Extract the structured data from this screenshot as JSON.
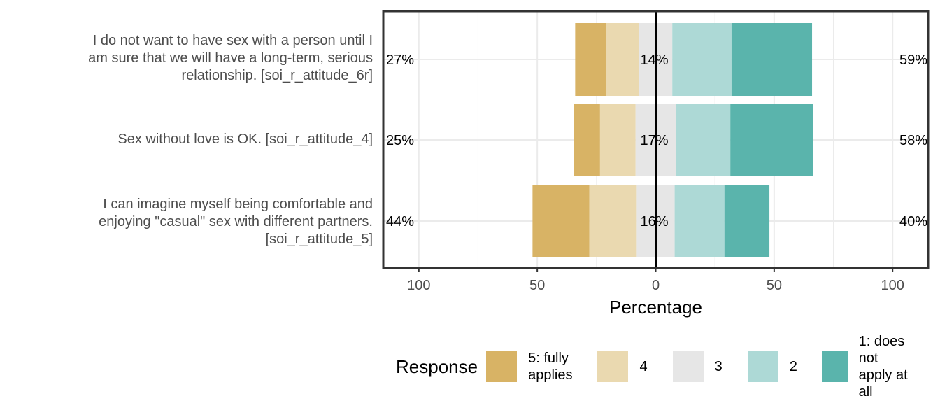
{
  "chart_data": {
    "type": "bar",
    "orientation": "horizontal-diverging-stacked",
    "xlabel": "Percentage",
    "xlim": [
      -115,
      115
    ],
    "x_ticks": [
      -100,
      -50,
      0,
      50,
      100
    ],
    "x_tick_labels": [
      "100",
      "50",
      "0",
      "50",
      "100"
    ],
    "grid": true,
    "legend_title": "Response",
    "legend_position": "bottom",
    "responses": [
      {
        "name": "5: fully\napplies",
        "color": "#D8B365"
      },
      {
        "name": "4",
        "color": "#EAD9B0"
      },
      {
        "name": "3",
        "color": "#E6E6E6"
      },
      {
        "name": "2",
        "color": "#ADD9D6"
      },
      {
        "name": "1: does not\napply at all",
        "color": "#5AB4AC"
      }
    ],
    "items": [
      {
        "label": "I do not want to have sex with a person until I\nam sure that we will have a long-term, serious\nrelationship. [soi_r_attitude_6r]",
        "values": [
          13,
          14,
          14,
          25,
          34
        ],
        "left_pct": "27%",
        "center_pct": "14%",
        "right_pct": "59%"
      },
      {
        "label": "Sex without love is OK. [soi_r_attitude_4]",
        "values": [
          11,
          15,
          17,
          23,
          35
        ],
        "left_pct": "25%",
        "center_pct": "17%",
        "right_pct": "58%"
      },
      {
        "label": "I can imagine myself being comfortable and\nenjoying \"casual\" sex with different partners.\n[soi_r_attitude_5]",
        "values": [
          24,
          20,
          16,
          21,
          19
        ],
        "left_pct": "44%",
        "center_pct": "16%",
        "right_pct": "40%"
      }
    ]
  }
}
